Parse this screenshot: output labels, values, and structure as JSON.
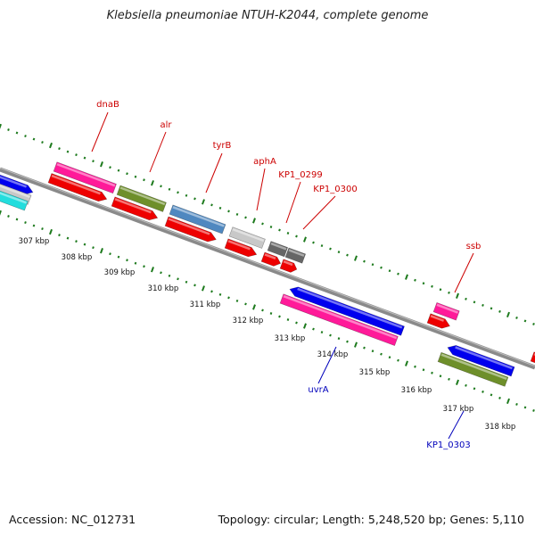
{
  "title": "Klebsiella pneumoniae NTUH-K2044, complete genome",
  "footer": {
    "accession": "Accession: NC_012731",
    "topology": "Topology: circular; Length: 5,248,520 bp; Genes: 5,110"
  },
  "colors": {
    "backbone": "#8a8a8a",
    "tick": "#1d7a1d",
    "label_red": "#cc0000",
    "label_blue": "#0000bb",
    "gene_red": "#ee0000",
    "gene_pink": "#ff1a99",
    "gene_olive": "#6e8f2a",
    "gene_steel": "#4f88c0",
    "gene_blue": "#0000ee",
    "gene_grey": "#c8c8c8",
    "gene_dark": "#666666",
    "gene_cyan": "#22dddd"
  },
  "kbp_ticks": [
    "307 kbp",
    "308 kbp",
    "309 kbp",
    "310 kbp",
    "311 kbp",
    "312 kbp",
    "313 kbp",
    "314 kbp",
    "315 kbp",
    "316 kbp",
    "317 kbp",
    "318 kbp"
  ],
  "gene_labels": [
    {
      "name": "dnaB",
      "color": "label_red"
    },
    {
      "name": "alr",
      "color": "label_red"
    },
    {
      "name": "tyrB",
      "color": "label_red"
    },
    {
      "name": "aphA",
      "color": "label_red"
    },
    {
      "name": "KP1_0299",
      "color": "label_red"
    },
    {
      "name": "KP1_0300",
      "color": "label_red"
    },
    {
      "name": "ssb",
      "color": "label_red"
    },
    {
      "name": "uvrA",
      "color": "label_blue"
    },
    {
      "name": "KP1_0303",
      "color": "label_blue"
    }
  ]
}
